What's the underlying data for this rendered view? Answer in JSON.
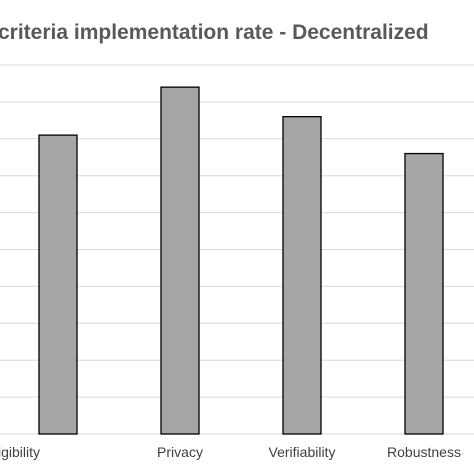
{
  "chart_data": {
    "type": "bar",
    "title": "criteria implementation rate - Decentralized",
    "categories": [
      "igibility",
      "Privacy",
      "Verifiability",
      "Robustness"
    ],
    "values": [
      81,
      94,
      86,
      76
    ],
    "ylim": [
      0,
      100
    ],
    "grid": true,
    "colors": {
      "bar_fill": "#a6a6a6",
      "bar_stroke": "#000000",
      "grid": "#d9d9d9",
      "title": "#595959",
      "tick_label": "#404040"
    }
  }
}
